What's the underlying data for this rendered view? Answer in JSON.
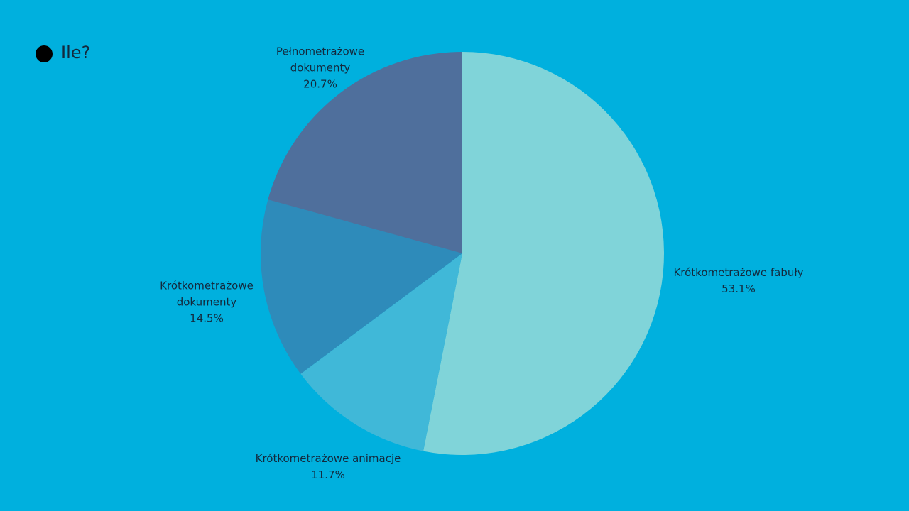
{
  "chart_data": {
    "type": "pie",
    "title": "Ile?",
    "categories": [
      "Krótkometrażowe fabuły",
      "Krótkometrażowe animacje",
      "Krótkometrażowe dokumenty",
      "Pełnometrażowe dokumenty"
    ],
    "values": [
      53.1,
      11.7,
      14.5,
      20.7
    ],
    "value_labels": [
      "53.1%",
      "11.7%",
      "14.5%",
      "20.7%"
    ],
    "colors": [
      "#80d4d9",
      "#40b8d8",
      "#2e8bba",
      "#4f6f9c"
    ]
  }
}
